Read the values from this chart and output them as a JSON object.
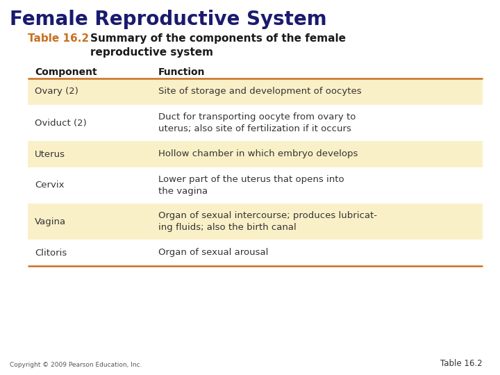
{
  "title": "Female Reproductive System",
  "title_color": "#1a1a6e",
  "table_label": "Table 16.2",
  "table_label_color": "#c87020",
  "table_subtitle": "Summary of the components of the female\nreproductive system",
  "table_subtitle_color": "#1a1a1a",
  "header_component": "Component",
  "header_function": "Function",
  "header_color": "#1a1a1a",
  "rows": [
    {
      "component": "Ovary (2)",
      "function": "Site of storage and development of oocytes",
      "highlight": true
    },
    {
      "component": "Oviduct (2)",
      "function": "Duct for transporting oocyte from ovary to\nuterus; also site of fertilization if it occurs",
      "highlight": false
    },
    {
      "component": "Uterus",
      "function": "Hollow chamber in which embryo develops",
      "highlight": true
    },
    {
      "component": "Cervix",
      "function": "Lower part of the uterus that opens into\nthe vagina",
      "highlight": false
    },
    {
      "component": "Vagina",
      "function": "Organ of sexual intercourse; produces lubricat-\ning fluids; also the birth canal",
      "highlight": true
    },
    {
      "component": "Clitoris",
      "function": "Organ of sexual arousal",
      "highlight": false
    }
  ],
  "highlight_color": "#faf0c8",
  "white_color": "#ffffff",
  "border_color": "#c87020",
  "footer_left": "Copyright © 2009 Pearson Education, Inc.",
  "footer_right": "Table 16.2",
  "bg_color": "#ffffff",
  "text_color": "#333333"
}
